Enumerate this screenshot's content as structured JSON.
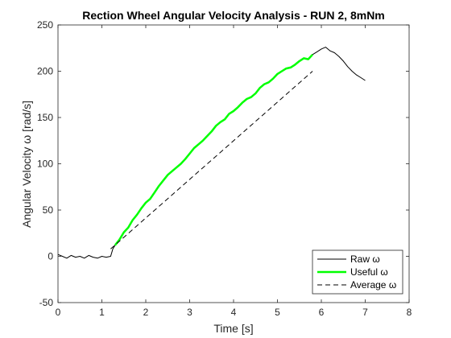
{
  "colors": {
    "raw": "#000000",
    "useful": "#00ff00",
    "average": "#000000",
    "axes": "#262626"
  },
  "chart_data": {
    "type": "line",
    "title": "Rection Wheel Angular Velocity Analysis - RUN 2, 8mNm",
    "xlabel": "Time [s]",
    "ylabel": "Angular Velocity ω [rad/s]",
    "xlim": [
      0,
      8
    ],
    "ylim": [
      -50,
      250
    ],
    "xticks": [
      "0",
      "1",
      "2",
      "3",
      "4",
      "5",
      "6",
      "7",
      "8"
    ],
    "yticks": [
      "-50",
      "0",
      "50",
      "100",
      "150",
      "200",
      "250"
    ],
    "grid": false,
    "legend_location": "bottom-right",
    "legend": [
      "Raw ω",
      "Useful ω",
      "Average ω"
    ],
    "series": [
      {
        "name": "Raw ω",
        "style": "solid-thin",
        "x": [
          0,
          0.1,
          0.2,
          0.3,
          0.4,
          0.5,
          0.6,
          0.7,
          0.8,
          0.9,
          1.0,
          1.1,
          1.2,
          1.25,
          1.3,
          1.4,
          1.5,
          1.6,
          1.7,
          1.8,
          1.9,
          2.0,
          2.1,
          2.2,
          2.3,
          2.4,
          2.5,
          2.6,
          2.7,
          2.8,
          2.9,
          3.0,
          3.1,
          3.2,
          3.3,
          3.4,
          3.5,
          3.6,
          3.7,
          3.8,
          3.9,
          4.0,
          4.1,
          4.2,
          4.3,
          4.4,
          4.5,
          4.6,
          4.7,
          4.8,
          4.9,
          5.0,
          5.1,
          5.2,
          5.3,
          5.4,
          5.5,
          5.6,
          5.7,
          5.8,
          5.9,
          6.0,
          6.1,
          6.2,
          6.3,
          6.4,
          6.5,
          6.6,
          6.7,
          6.8,
          6.9,
          7.0
        ],
        "y": [
          2,
          0,
          -2,
          1,
          -1,
          0,
          -2,
          1,
          -1,
          -2,
          0,
          -1,
          0,
          8,
          12,
          18,
          26,
          31,
          39,
          45,
          52,
          58,
          62,
          69,
          76,
          82,
          88,
          92,
          96,
          100,
          105,
          111,
          117,
          121,
          125,
          130,
          135,
          141,
          145,
          148,
          154,
          157,
          161,
          166,
          170,
          172,
          176,
          182,
          186,
          188,
          192,
          197,
          200,
          203,
          204,
          207,
          211,
          214,
          213,
          218,
          221,
          224,
          226,
          222,
          220,
          216,
          211,
          205,
          200,
          196,
          193,
          190
        ]
      },
      {
        "name": "Useful ω",
        "style": "solid-thick",
        "x": [
          1.3,
          1.4,
          1.5,
          1.6,
          1.7,
          1.8,
          1.9,
          2.0,
          2.1,
          2.2,
          2.3,
          2.4,
          2.5,
          2.6,
          2.7,
          2.8,
          2.9,
          3.0,
          3.1,
          3.2,
          3.3,
          3.4,
          3.5,
          3.6,
          3.7,
          3.8,
          3.9,
          4.0,
          4.1,
          4.2,
          4.3,
          4.4,
          4.5,
          4.6,
          4.7,
          4.8,
          4.9,
          5.0,
          5.1,
          5.2,
          5.3,
          5.4,
          5.5,
          5.6,
          5.7,
          5.8
        ],
        "y": [
          12,
          18,
          26,
          31,
          39,
          45,
          52,
          58,
          62,
          69,
          76,
          82,
          88,
          92,
          96,
          100,
          105,
          111,
          117,
          121,
          125,
          130,
          135,
          141,
          145,
          148,
          154,
          157,
          161,
          166,
          170,
          172,
          176,
          182,
          186,
          188,
          192,
          197,
          200,
          203,
          204,
          207,
          211,
          214,
          213,
          218
        ]
      },
      {
        "name": "Average ω",
        "style": "dashed",
        "x": [
          1.2,
          5.8
        ],
        "y": [
          8,
          200
        ]
      }
    ]
  }
}
